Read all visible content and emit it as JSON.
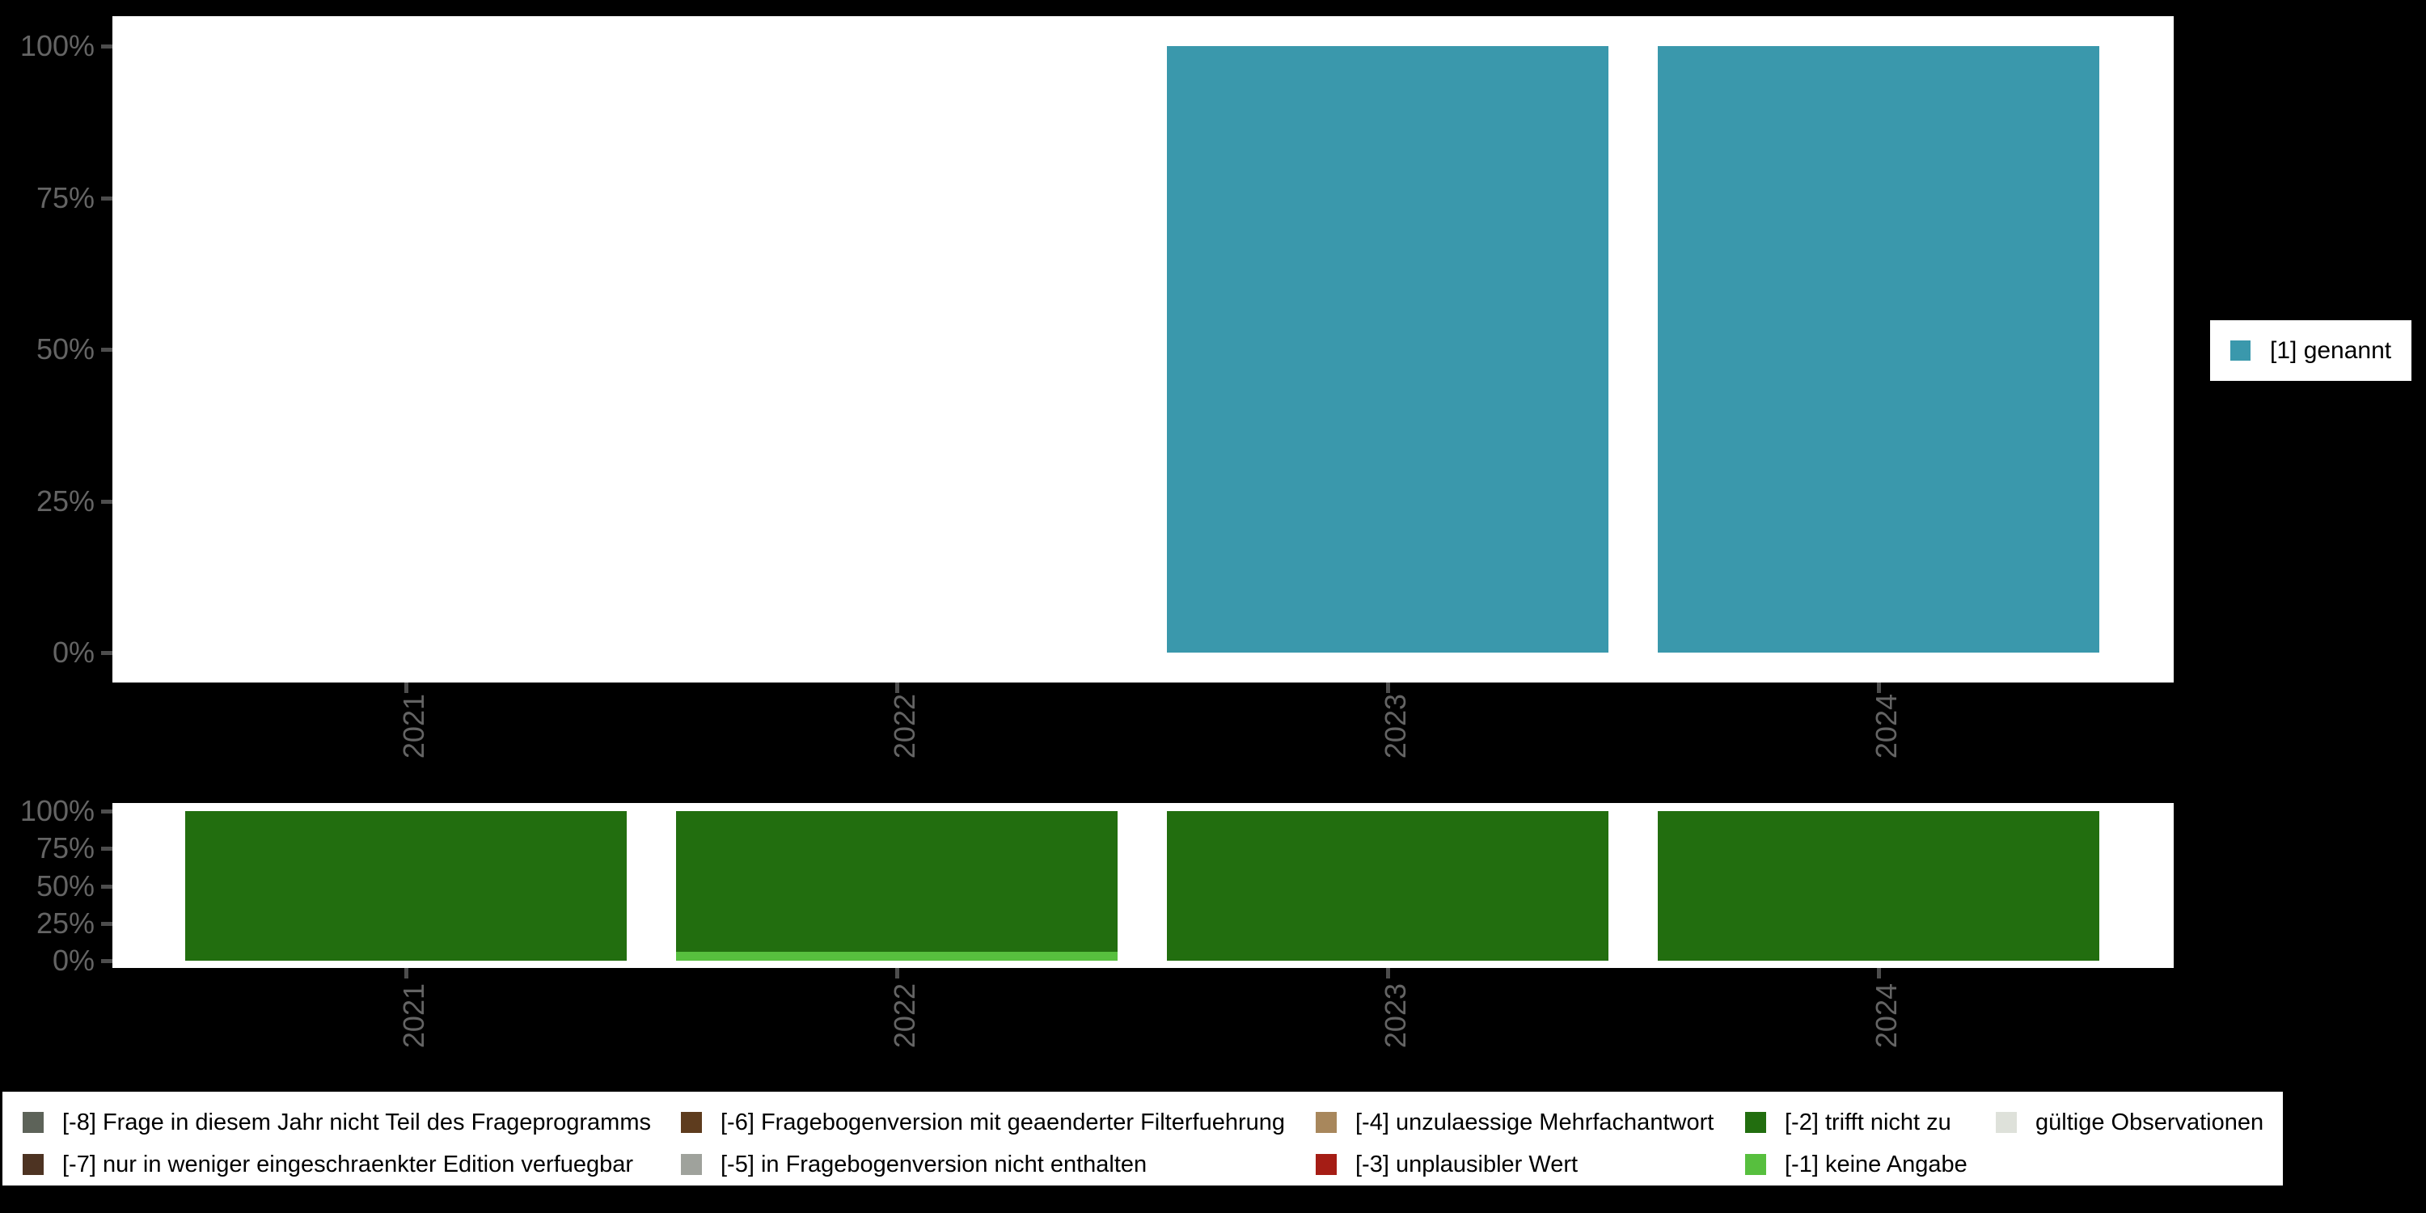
{
  "page": {
    "background": "#000000",
    "plot_background": "#ffffff",
    "axis_text_color": "#646464",
    "tick_color": "#4d4d4d"
  },
  "top_legend": {
    "label": "[1] genannt",
    "color": "#3a98ac"
  },
  "bottom_legend": {
    "items": [
      {
        "id": "m8",
        "label": "[-8] Frage in diesem Jahr nicht Teil des Frageprogramms",
        "color": "#5d6359",
        "col": 0,
        "row": 0
      },
      {
        "id": "m7",
        "label": "[-7] nur in weniger eingeschraenkter Edition verfuegbar",
        "color": "#4d3322",
        "col": 0,
        "row": 1
      },
      {
        "id": "m6",
        "label": "[-6] Fragebogenversion mit geaenderter Filterfuehrung",
        "color": "#5e3c1e",
        "col": 1,
        "row": 0
      },
      {
        "id": "m5",
        "label": "[-5] in Fragebogenversion nicht enthalten",
        "color": "#9fa29c",
        "col": 1,
        "row": 1
      },
      {
        "id": "m4",
        "label": "[-4] unzulaessige Mehrfachantwort",
        "color": "#a8875c",
        "col": 2,
        "row": 0
      },
      {
        "id": "m3",
        "label": "[-3] unplausibler Wert",
        "color": "#a51d15",
        "col": 2,
        "row": 1
      },
      {
        "id": "m2",
        "label": "[-2] trifft nicht zu",
        "color": "#226e0f",
        "col": 3,
        "row": 0
      },
      {
        "id": "m1",
        "label": "[-1] keine Angabe",
        "color": "#57bf3e",
        "col": 3,
        "row": 1
      },
      {
        "id": "valid",
        "label": "gültige Observationen",
        "color": "#dee1da",
        "col": 4,
        "row": 0
      }
    ]
  },
  "chart_data": [
    {
      "type": "bar",
      "stacked": true,
      "unit": "percent",
      "title": "",
      "categories": [
        "2021",
        "2022",
        "2023",
        "2024"
      ],
      "series": [
        {
          "name": "[1] genannt",
          "color": "#3a98ac",
          "values": [
            null,
            null,
            100,
            100
          ]
        }
      ],
      "xlabel": "",
      "ylabel": "",
      "ylim": [
        0,
        100
      ],
      "y_tick_values": [
        0,
        25,
        50,
        75,
        100
      ],
      "y_tick_labels": [
        "0%",
        "25%",
        "50%",
        "75%",
        "100%"
      ],
      "grid": false,
      "legend_position": "right"
    },
    {
      "type": "bar",
      "stacked": true,
      "unit": "percent",
      "title": "",
      "categories": [
        "2021",
        "2022",
        "2023",
        "2024"
      ],
      "series": [
        {
          "name": "[-2] trifft nicht zu",
          "color": "#226e0f",
          "values": [
            100,
            94,
            100,
            100
          ]
        },
        {
          "name": "[-1] keine Angabe",
          "color": "#57bf3e",
          "values": [
            0,
            6,
            0,
            0
          ]
        }
      ],
      "xlabel": "",
      "ylabel": "",
      "ylim": [
        0,
        100
      ],
      "y_tick_values": [
        0,
        25,
        50,
        75,
        100
      ],
      "y_tick_labels": [
        "0%",
        "25%",
        "50%",
        "75%",
        "100%"
      ],
      "grid": false,
      "legend_position": "bottom"
    }
  ]
}
